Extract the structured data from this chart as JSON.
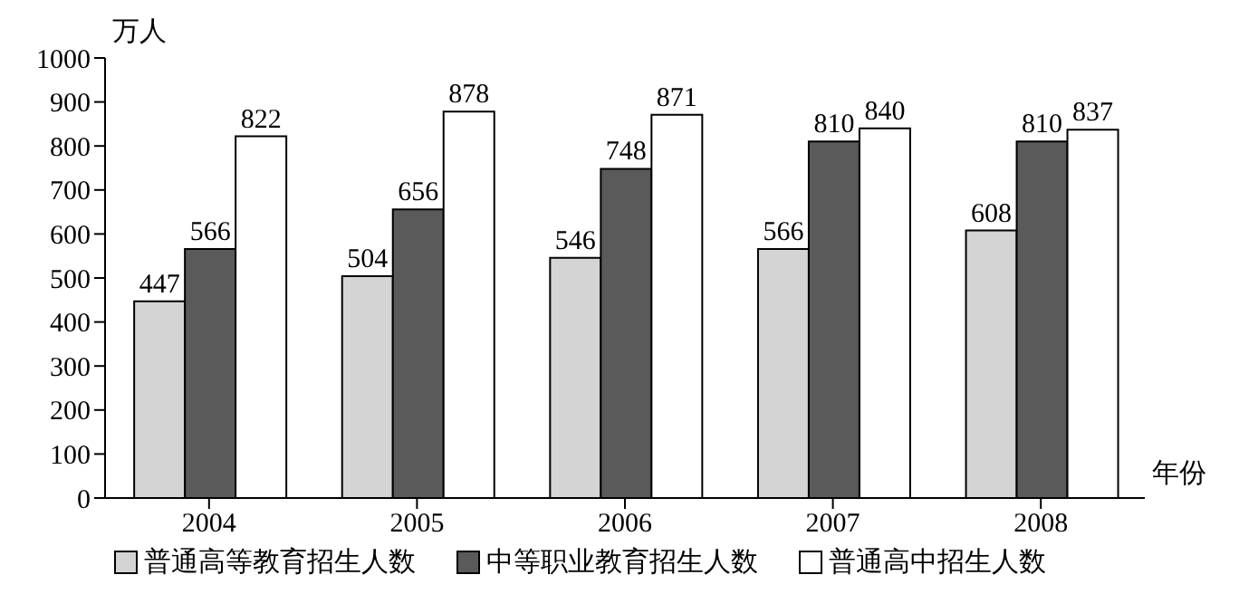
{
  "chart_data": {
    "type": "bar",
    "ylabel": "万人",
    "xlabel": "年份",
    "categories": [
      "2004",
      "2005",
      "2006",
      "2007",
      "2008"
    ],
    "series": [
      {
        "name": "普通高等教育招生人数",
        "color": "#d4d4d4",
        "values": [
          447,
          504,
          546,
          566,
          608
        ]
      },
      {
        "name": "中等职业教育招生人数",
        "color": "#5a5a5a",
        "values": [
          566,
          656,
          748,
          810,
          810
        ]
      },
      {
        "name": "普通高中招生人数",
        "color": "#ffffff",
        "values": [
          822,
          878,
          871,
          840,
          837
        ]
      }
    ],
    "ylim": [
      0,
      1000
    ],
    "yticks": [
      0,
      100,
      200,
      300,
      400,
      500,
      600,
      700,
      800,
      900,
      1000
    ],
    "data_labels": true,
    "legend": "bottom",
    "grid": false
  }
}
